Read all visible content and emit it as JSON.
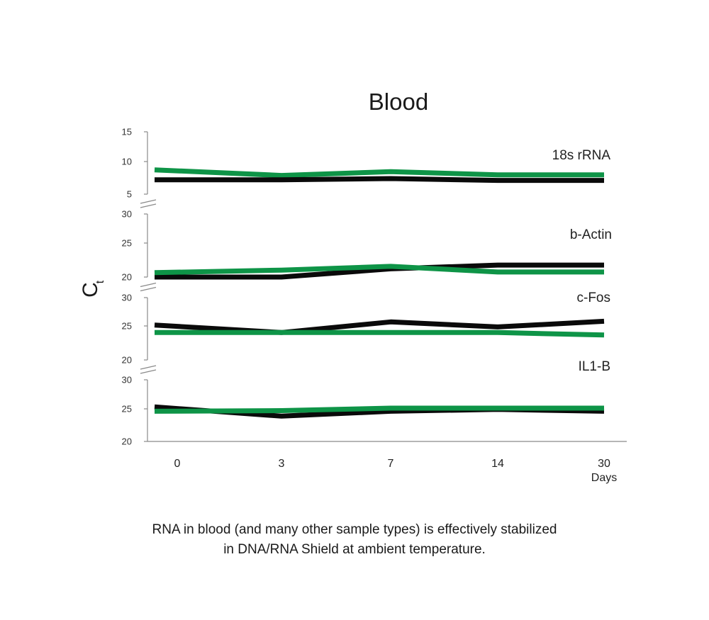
{
  "colors": {
    "black_series": "#0a0a0a",
    "green_series": "#0e9447",
    "axis": "#8a8a8a"
  },
  "chart_data": {
    "type": "line",
    "title": "Blood",
    "ylabel": "C",
    "ylabel_subscript": "t",
    "xlabel": "Days",
    "x": [
      0,
      3,
      7,
      14,
      30
    ],
    "x_tick_labels": [
      "0",
      "3",
      "7",
      "14",
      "30"
    ],
    "grid": false,
    "broken_y_axis": true,
    "panels": [
      {
        "label": "18s rRNA",
        "ylim": [
          5,
          15
        ],
        "yticks": [
          "15",
          "10",
          "5"
        ],
        "series": [
          {
            "color": "green",
            "values": [
              8.9,
              8.0,
              8.6,
              8.1,
              8.1
            ]
          },
          {
            "color": "black",
            "values": [
              7.3,
              7.3,
              7.5,
              7.2,
              7.2
            ]
          }
        ]
      },
      {
        "label": "b-Actin",
        "ylim": [
          20,
          30
        ],
        "yticks": [
          "30",
          "25",
          "20"
        ],
        "series": [
          {
            "color": "black",
            "values": [
              20.0,
              20.0,
              21.3,
              21.9,
              21.9
            ]
          },
          {
            "color": "green",
            "values": [
              20.7,
              21.1,
              21.7,
              20.8,
              20.8
            ]
          }
        ]
      },
      {
        "label": "c-Fos",
        "ylim": [
          20,
          30
        ],
        "yticks": [
          "30",
          "25",
          "20"
        ],
        "series": [
          {
            "color": "black",
            "values": [
              25.6,
              24.4,
              26.1,
              25.3,
              26.2
            ]
          },
          {
            "color": "green",
            "values": [
              24.4,
              24.4,
              24.4,
              24.4,
              24.0
            ]
          }
        ]
      },
      {
        "label": "IL1-B",
        "ylim": [
          20,
          30
        ],
        "yticks": [
          "30",
          "25",
          "20"
        ],
        "series": [
          {
            "color": "black",
            "values": [
              25.6,
              24.1,
              24.9,
              25.2,
              24.9
            ]
          },
          {
            "color": "green",
            "values": [
              24.9,
              25.0,
              25.4,
              25.4,
              25.4
            ]
          }
        ]
      }
    ]
  },
  "caption": {
    "line1": "RNA in blood (and many other sample types) is effectively stabilized",
    "line2": "in DNA/RNA Shield at ambient temperature."
  }
}
